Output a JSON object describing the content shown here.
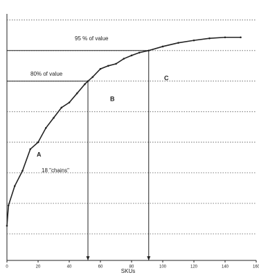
{
  "chart_data": {
    "type": "line",
    "x_label": "SKUs",
    "annotations": [
      "95 % of value",
      "80% of value",
      "A",
      "B",
      "C",
      "18 \"chains\""
    ],
    "x": [
      0,
      1,
      5,
      10,
      15,
      20,
      25,
      30,
      35,
      40,
      45,
      50,
      52,
      55,
      60,
      65,
      70,
      75,
      80,
      85,
      91,
      100,
      110,
      120,
      130,
      140,
      150
    ],
    "series": [
      {
        "color": "#222222",
        "values": [
          9,
          19,
          28.5,
          36,
          46.6,
          50,
          57,
          62,
          67,
          69.5,
          74,
          78.5,
          80,
          82,
          86,
          87.5,
          88.5,
          91,
          92.6,
          94,
          95,
          97,
          98.8,
          100,
          101,
          101.5,
          101.5
        ]
      }
    ],
    "reference_lines": [
      {
        "x": 52,
        "y": 80
      },
      {
        "x": 91,
        "y": 95
      }
    ],
    "xlim": [
      0,
      160
    ],
    "xticks": [
      0,
      20,
      40,
      60,
      80,
      100,
      120,
      140,
      160
    ],
    "ylim": [
      -8,
      113
    ],
    "yticks": [
      5,
      20,
      35,
      50,
      65,
      80,
      95,
      110
    ],
    "grid": true
  }
}
